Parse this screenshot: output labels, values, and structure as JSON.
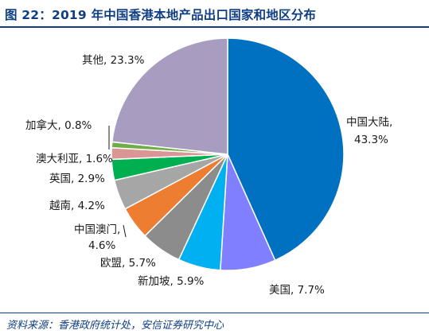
{
  "figure": {
    "title": "图 22：2019 年中国香港本地产品出口国家和地区分布",
    "source": "资料来源：香港政府统计处，安信证券研究中心"
  },
  "chart_data": {
    "type": "pie",
    "title": "",
    "legend": "none",
    "slices": [
      {
        "label": "中国大陆",
        "value": 43.3,
        "display": "43.3%",
        "color": "#0070c0"
      },
      {
        "label": "美国",
        "value": 7.7,
        "display": "7.7%",
        "color": "#7f7fff"
      },
      {
        "label": "新加坡",
        "value": 5.9,
        "display": "5.9%",
        "color": "#00b0f0"
      },
      {
        "label": "欧盟",
        "value": 5.7,
        "display": "5.7%",
        "color": "#8c8c8c"
      },
      {
        "label": "中国澳门",
        "value": 4.6,
        "display": "4.6%",
        "color": "#ed7d31"
      },
      {
        "label": "越南",
        "value": 4.2,
        "display": "4.2%",
        "color": "#a6a6a6"
      },
      {
        "label": "英国",
        "value": 2.9,
        "display": "2.9%",
        "color": "#00b050"
      },
      {
        "label": "澳大利亚",
        "value": 1.6,
        "display": "1.6%",
        "color": "#d99694"
      },
      {
        "label": "加拿大",
        "value": 0.8,
        "display": "0.8%",
        "color": "#70ad47"
      },
      {
        "label": "其他",
        "value": 23.3,
        "display": "23.3%",
        "color": "#a89cc0"
      }
    ]
  }
}
